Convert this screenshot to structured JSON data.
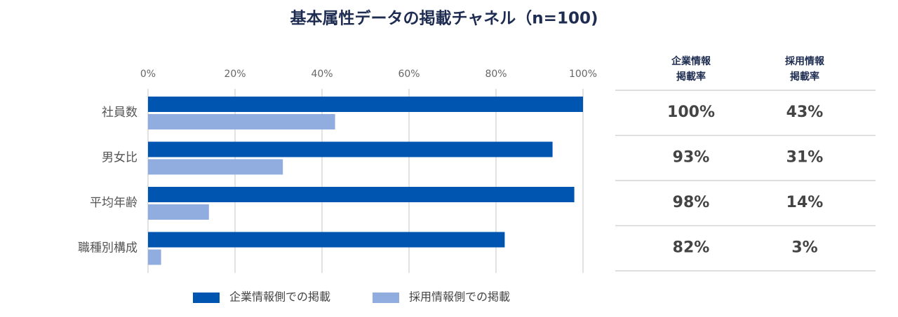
{
  "chart_data": {
    "type": "barh",
    "title": "基本属性データの掲載チャネル（n=100)",
    "categories": [
      "社員数",
      "男女比",
      "平均年齢",
      "職種別構成"
    ],
    "series": [
      {
        "name": "企業情報側での掲載",
        "color": "#0055b0",
        "values": [
          100,
          93,
          98,
          82
        ],
        "value_labels": [
          "100%",
          "93%",
          "98%",
          "82%"
        ]
      },
      {
        "name": "採用情報側での掲載",
        "color": "#91acdf",
        "values": [
          43,
          31,
          14,
          3
        ],
        "value_labels": [
          "43%",
          "31%",
          "14%",
          "3%"
        ]
      }
    ],
    "xlim": [
      0,
      100
    ],
    "xticks": [
      {
        "value": 0,
        "label": "0%"
      },
      {
        "value": 20,
        "label": "20%"
      },
      {
        "value": 40,
        "label": "40%"
      },
      {
        "value": 60,
        "label": "60%"
      },
      {
        "value": 80,
        "label": "80%"
      },
      {
        "value": 100,
        "label": "100%"
      }
    ],
    "grid": true,
    "table_headers": [
      [
        "企業情報",
        "掲載率"
      ],
      [
        "採用情報",
        "掲載率"
      ]
    ]
  }
}
